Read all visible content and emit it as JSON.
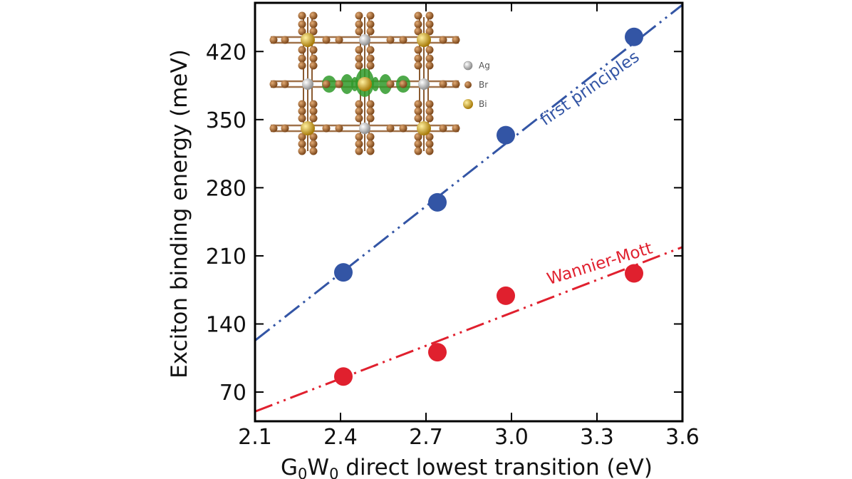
{
  "chart_data": {
    "type": "scatter",
    "xlabel_parts": [
      "G",
      "0",
      "W",
      "0",
      " direct lowest transition (eV)"
    ],
    "ylabel": "Exciton binding energy (meV)",
    "xlim": [
      2.1,
      3.6
    ],
    "ylim": [
      40,
      470
    ],
    "x_ticks": [
      "2.1",
      "2.4",
      "2.7",
      "3.0",
      "3.3",
      "3.6"
    ],
    "y_ticks": [
      "70",
      "140",
      "210",
      "280",
      "350",
      "420"
    ],
    "grid": false,
    "series": [
      {
        "name": "first principles",
        "color": "#3355a5",
        "points": [
          {
            "x": 2.41,
            "y": 193
          },
          {
            "x": 2.74,
            "y": 265
          },
          {
            "x": 2.98,
            "y": 334
          },
          {
            "x": 3.43,
            "y": 435
          }
        ],
        "fit": {
          "x": [
            2.1,
            3.6
          ],
          "y": [
            123,
            468
          ]
        }
      },
      {
        "name": "Wannier-Mott",
        "color": "#e0202e",
        "points": [
          {
            "x": 2.41,
            "y": 86
          },
          {
            "x": 2.74,
            "y": 111
          },
          {
            "x": 2.98,
            "y": 169
          },
          {
            "x": 3.43,
            "y": 192
          }
        ],
        "fit": {
          "x": [
            2.1,
            3.6
          ],
          "y": [
            50,
            219
          ]
        }
      }
    ],
    "inset": {
      "legend": [
        {
          "label": "Ag",
          "color": "#e4e4e4"
        },
        {
          "label": "Br",
          "color": "#b8753a"
        },
        {
          "label": "Bi",
          "color": "#e2b52a"
        }
      ]
    }
  }
}
